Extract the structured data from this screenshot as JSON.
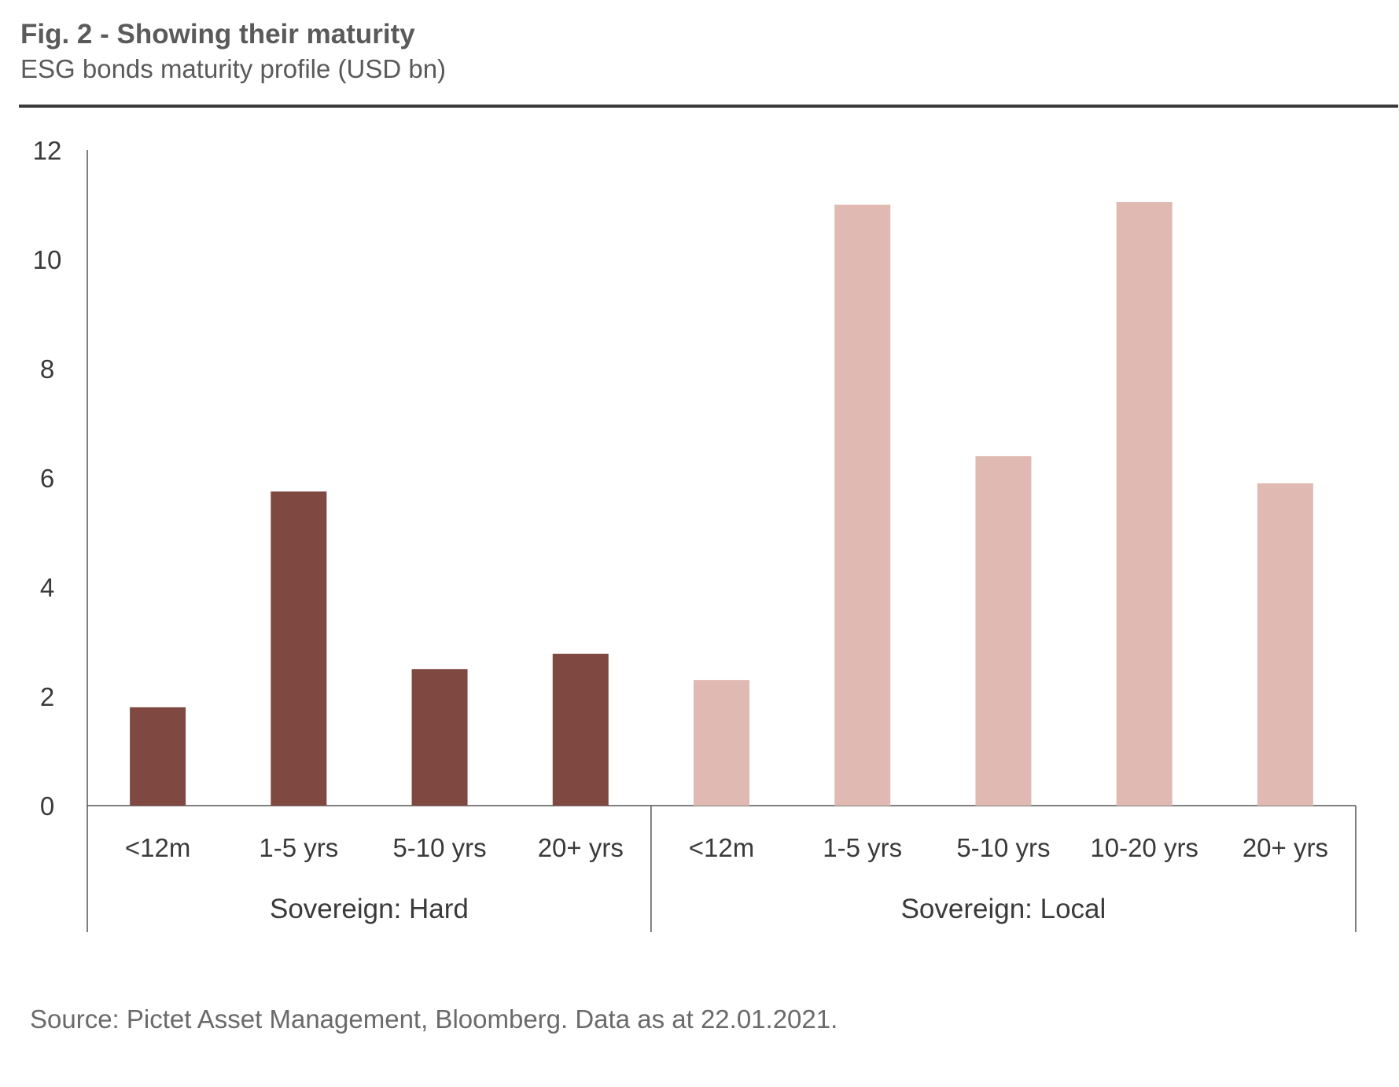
{
  "header": {
    "title": "Fig. 2 - Showing their maturity",
    "subtitle": "ESG bonds maturity profile (USD bn)"
  },
  "footer": {
    "source": "Source: Pictet Asset Management, Bloomberg. Data as at 22.01.2021."
  },
  "chart_data": {
    "type": "bar",
    "title": "Fig. 2 - Showing their maturity",
    "subtitle": "ESG bonds maturity profile (USD bn)",
    "ylim": [
      0,
      12
    ],
    "yticks": [
      0,
      2,
      4,
      6,
      8,
      10,
      12
    ],
    "grid": false,
    "legend": "none",
    "groups": [
      {
        "name": "Sovereign: Hard",
        "color": "#7f4840",
        "categories": [
          "<12m",
          "1-5 yrs",
          "5-10 yrs",
          "20+ yrs"
        ],
        "values": [
          1.8,
          5.75,
          2.5,
          2.78
        ]
      },
      {
        "name": "Sovereign: Local",
        "color": "#e0bab2",
        "categories": [
          "<12m",
          "1-5 yrs",
          "5-10 yrs",
          "10-20 yrs",
          "20+ yrs"
        ],
        "values": [
          2.3,
          11.0,
          6.4,
          11.05,
          5.9
        ]
      }
    ]
  }
}
